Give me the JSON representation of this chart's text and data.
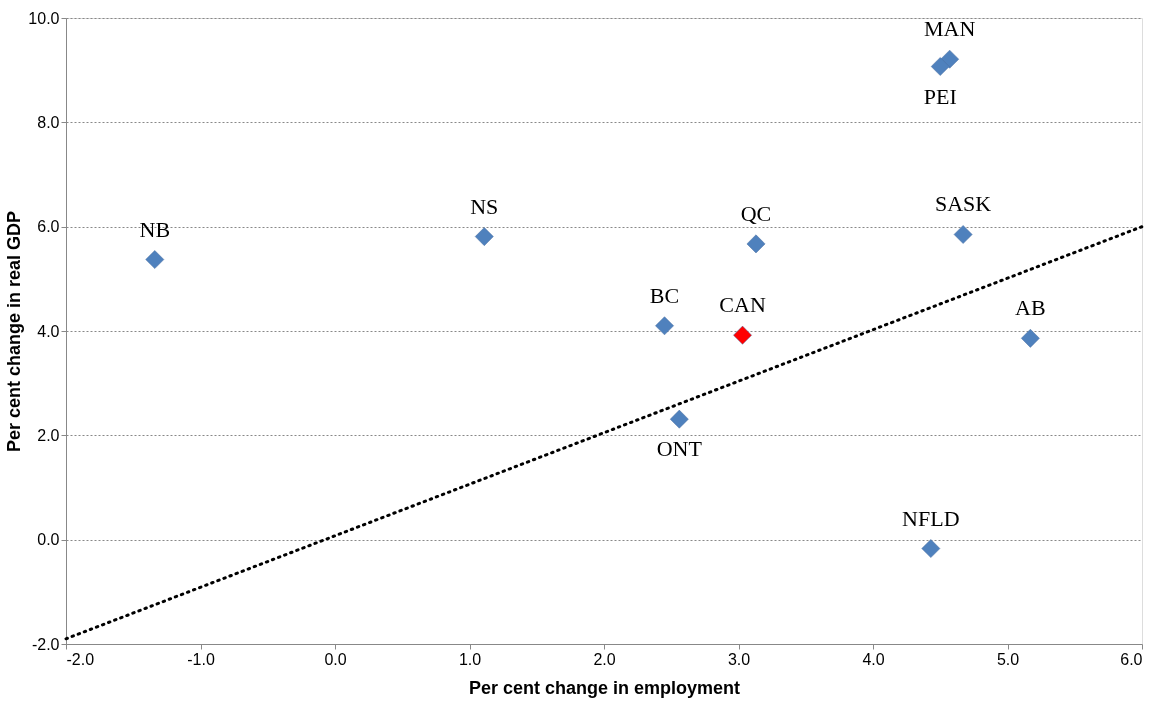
{
  "chart_data": {
    "type": "scatter",
    "xlabel": "Per cent change in employment",
    "ylabel": "Per cent change in real GDP",
    "series": [
      {
        "name": "NB",
        "color": "#4f81bd",
        "x": [
          -1.34
        ],
        "values": [
          5.37
        ]
      },
      {
        "name": "NS",
        "color": "#4f81bd",
        "x": [
          1.11
        ],
        "values": [
          5.81
        ]
      },
      {
        "name": "QC",
        "color": "#4f81bd",
        "x": [
          3.13
        ],
        "values": [
          5.67
        ]
      },
      {
        "name": "SASK",
        "color": "#4f81bd",
        "x": [
          4.67
        ],
        "values": [
          5.85
        ]
      },
      {
        "name": "MAN",
        "color": "#4f81bd",
        "x": [
          4.57
        ],
        "values": [
          9.21
        ]
      },
      {
        "name": "PEI",
        "color": "#4f81bd",
        "x": [
          4.5
        ],
        "values": [
          9.07
        ]
      },
      {
        "name": "BC",
        "color": "#4f81bd",
        "x": [
          2.45
        ],
        "values": [
          4.1
        ]
      },
      {
        "name": "CAN",
        "color": "#ff0000",
        "x": [
          3.03
        ],
        "values": [
          3.92
        ]
      },
      {
        "name": "AB",
        "color": "#4f81bd",
        "x": [
          5.17
        ],
        "values": [
          3.86
        ]
      },
      {
        "name": "ONT",
        "color": "#4f81bd",
        "x": [
          2.56
        ],
        "values": [
          2.31
        ]
      },
      {
        "name": "NFLD",
        "color": "#4f81bd",
        "x": [
          4.43
        ],
        "values": [
          -0.17
        ]
      },
      {
        "type": "line",
        "x": [
          -2.0,
          6.0
        ],
        "values": [
          -1.9,
          6.0
        ],
        "color": "#000000",
        "line_style": "dotted",
        "marker": "none"
      }
    ],
    "marker": "diamond",
    "xlim": [
      -2.0,
      6.0
    ],
    "ylim": [
      -2.0,
      10.0
    ],
    "xticks": [
      {
        "value": -2,
        "label": "-2.0"
      },
      {
        "value": -1,
        "label": "-1.0"
      },
      {
        "value": 0,
        "label": "0.0"
      },
      {
        "value": 1,
        "label": "1.0"
      },
      {
        "value": 2,
        "label": "2.0"
      },
      {
        "value": 3,
        "label": "3.0"
      },
      {
        "value": 4,
        "label": "4.0"
      },
      {
        "value": 5,
        "label": "5.0"
      },
      {
        "value": 6,
        "label": "6.0"
      }
    ],
    "yticks": [
      {
        "value": -2,
        "label": "-2.0"
      },
      {
        "value": 0,
        "label": "0.0"
      },
      {
        "value": 2,
        "label": "2.0"
      },
      {
        "value": 4,
        "label": "4.0"
      },
      {
        "value": 6,
        "label": "6.0"
      },
      {
        "value": 8,
        "label": "8.0"
      },
      {
        "value": 10,
        "label": "10.0"
      }
    ],
    "grid": "y",
    "legend": false
  }
}
